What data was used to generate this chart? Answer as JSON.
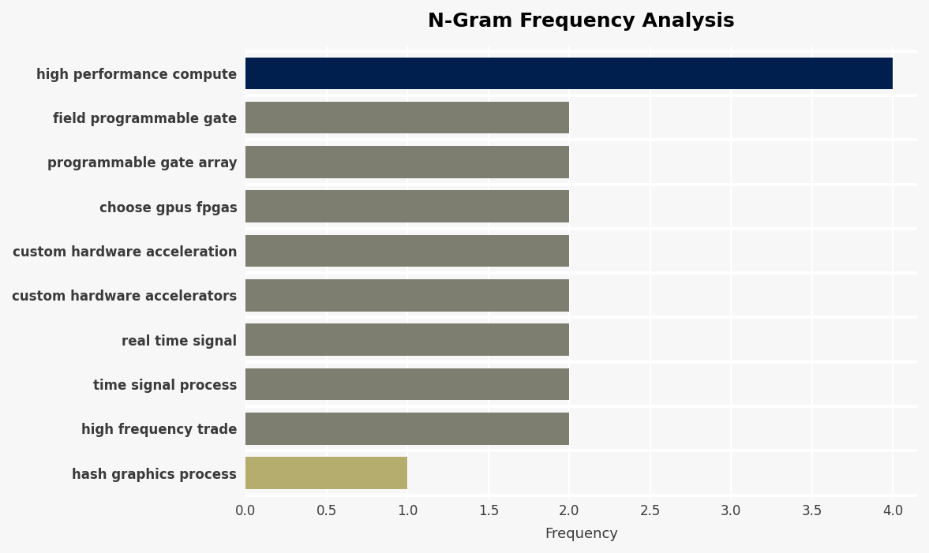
{
  "title": "N-Gram Frequency Analysis",
  "xlabel": "Frequency",
  "categories": [
    "high performance compute",
    "field programmable gate",
    "programmable gate array",
    "choose gpus fpgas",
    "custom hardware acceleration",
    "custom hardware accelerators",
    "real time signal",
    "time signal process",
    "high frequency trade",
    "hash graphics process"
  ],
  "values": [
    4,
    2,
    2,
    2,
    2,
    2,
    2,
    2,
    2,
    1
  ],
  "bar_colors": [
    "#001f4e",
    "#7d7d70",
    "#7d7d70",
    "#7d7d70",
    "#7d7d70",
    "#7d7d70",
    "#7d7d70",
    "#7d7d70",
    "#7d7d70",
    "#b5ad6e"
  ],
  "xlim": [
    0,
    4.15
  ],
  "xticks": [
    0.0,
    0.5,
    1.0,
    1.5,
    2.0,
    2.5,
    3.0,
    3.5,
    4.0
  ],
  "background_color": "#f7f7f7",
  "plot_background": "#f7f7f7",
  "title_fontsize": 18,
  "label_fontsize": 12,
  "tick_fontsize": 12,
  "bar_height": 0.72
}
